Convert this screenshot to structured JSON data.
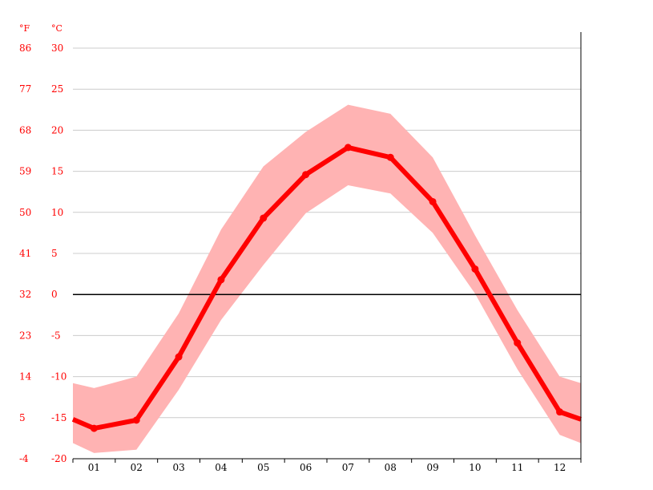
{
  "chart_data": {
    "type": "line",
    "unit_f": "°F",
    "unit_c": "°C",
    "categories": [
      "01",
      "02",
      "03",
      "04",
      "05",
      "06",
      "07",
      "08",
      "09",
      "10",
      "11",
      "12"
    ],
    "y_ticks_c": [
      30,
      25,
      20,
      15,
      10,
      5,
      0,
      -5,
      -10,
      -15,
      -20
    ],
    "y_ticks_f": [
      86,
      77,
      68,
      59,
      50,
      41,
      32,
      23,
      14,
      5,
      -4
    ],
    "ylim": [
      -20,
      30
    ],
    "zero_line": 0,
    "grid": true,
    "series": [
      {
        "values": [
          -16.3,
          -15.3,
          -7.6,
          1.8,
          9.3,
          14.6,
          17.9,
          16.7,
          11.3,
          3.1,
          -5.9,
          -14.3
        ]
      }
    ],
    "band_upper": [
      -11.4,
      -10.0,
      -2.3,
      7.9,
      15.6,
      19.8,
      23.1,
      22.0,
      16.7,
      7.2,
      -1.9,
      -10.0
    ],
    "band_lower": [
      -19.3,
      -18.9,
      -11.6,
      -3.1,
      3.6,
      9.9,
      13.3,
      12.3,
      7.5,
      0.1,
      -9.1,
      -17.1
    ],
    "edge_values": {
      "left": -15.2,
      "right": -15.2,
      "band_upper_left": -10.8,
      "band_upper_right": -10.8,
      "band_lower_left": -18.1,
      "band_lower_right": -18.1
    },
    "colors": {
      "line": "#ff0000",
      "band": "#ffb3b3",
      "grid": "#cccccc",
      "zero": "#000000",
      "tick_y": "#ff0000",
      "tick_x": "#000000"
    }
  }
}
